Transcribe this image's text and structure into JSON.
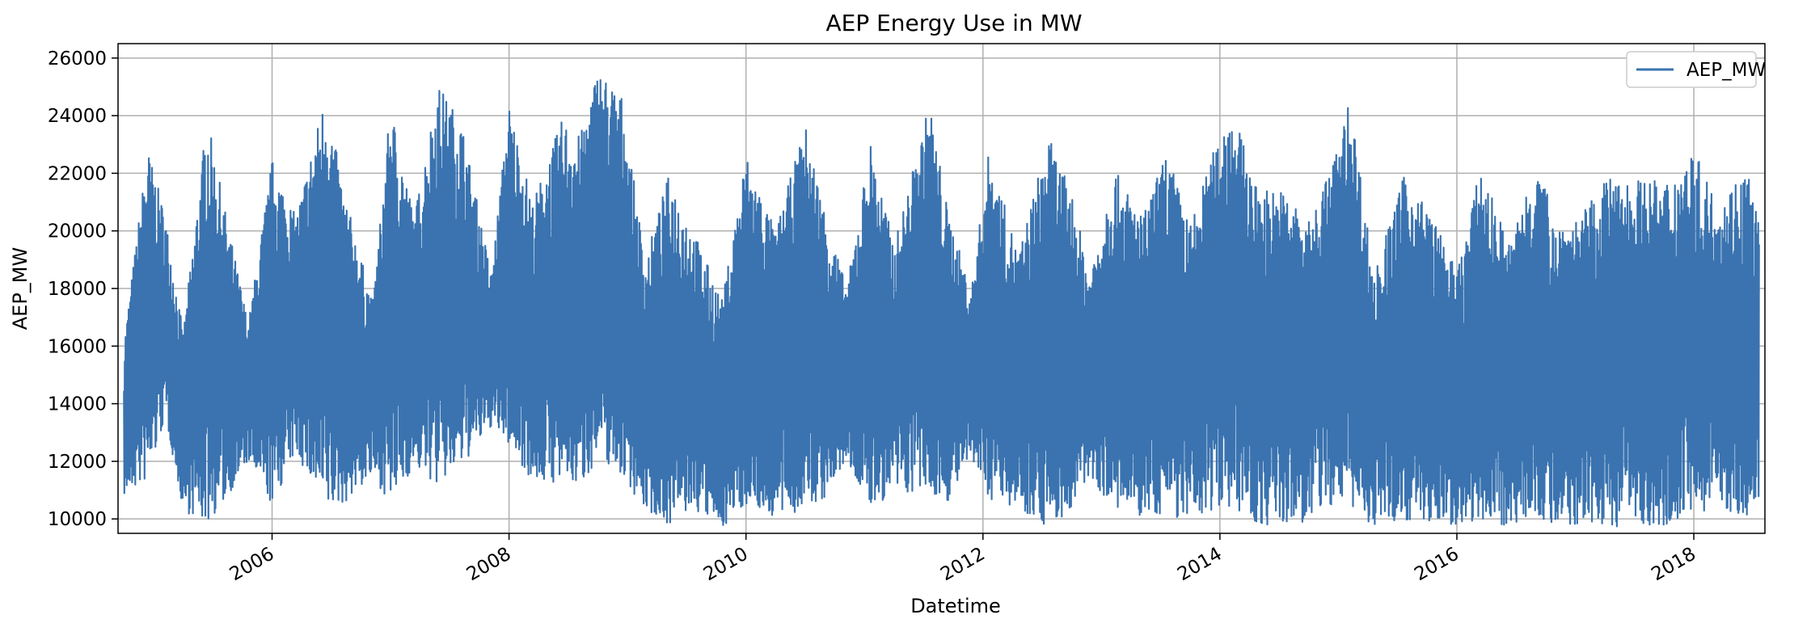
{
  "chart_data": {
    "type": "line",
    "title": "AEP Energy Use in MW",
    "xlabel": "Datetime",
    "ylabel": "AEP_MW",
    "legend": {
      "entries": [
        "AEP_MW"
      ],
      "placement": "top-right"
    },
    "grid": true,
    "x_range": [
      2004.7,
      2018.6
    ],
    "ylim": [
      9500,
      26500
    ],
    "x_ticks": [
      "2006",
      "2008",
      "2010",
      "2012",
      "2014",
      "2016",
      "2018"
    ],
    "y_ticks": [
      "10000",
      "12000",
      "14000",
      "16000",
      "18000",
      "20000",
      "22000",
      "24000",
      "26000"
    ],
    "series": [
      {
        "name": "AEP_MW",
        "color": "#3a73b0",
        "x": [
          2004.75,
          2004.95,
          2005.1,
          2005.25,
          2005.45,
          2005.6,
          2005.8,
          2006.0,
          2006.2,
          2006.45,
          2006.6,
          2006.85,
          2007.0,
          2007.2,
          2007.4,
          2007.6,
          2007.85,
          2008.0,
          2008.2,
          2008.45,
          2008.6,
          2008.75,
          2008.95,
          2009.15,
          2009.35,
          2009.55,
          2009.8,
          2010.0,
          2010.25,
          2010.5,
          2010.65,
          2010.85,
          2011.05,
          2011.25,
          2011.55,
          2011.7,
          2011.9,
          2012.05,
          2012.3,
          2012.55,
          2012.75,
          2012.9,
          2013.1,
          2013.35,
          2013.55,
          2013.75,
          2014.0,
          2014.1,
          2014.3,
          2014.55,
          2014.75,
          2015.0,
          2015.1,
          2015.3,
          2015.55,
          2015.75,
          2016.0,
          2016.2,
          2016.45,
          2016.65,
          2016.85,
          2017.05,
          2017.25,
          2017.55,
          2017.75,
          2018.0,
          2018.2,
          2018.45,
          2018.55
        ],
        "max": [
          16200,
          22900,
          20500,
          16500,
          24000,
          20800,
          16800,
          22500,
          20500,
          24800,
          21500,
          17500,
          24400,
          20500,
          25100,
          23800,
          18500,
          24400,
          21000,
          23900,
          23300,
          25700,
          24700,
          19000,
          22000,
          20100,
          17600,
          22700,
          20000,
          23700,
          21000,
          18000,
          23100,
          19500,
          24500,
          20800,
          17900,
          22800,
          19200,
          23300,
          21300,
          18500,
          22200,
          20500,
          22800,
          20200,
          23500,
          24400,
          21600,
          21400,
          20300,
          23000,
          24700,
          18500,
          21900,
          20900,
          18600,
          22200,
          19500,
          22500,
          20400,
          20500,
          21800,
          21800,
          21700,
          22800,
          21000,
          22300,
          20400
        ],
        "min": [
          10800,
          11300,
          13500,
          10300,
          9800,
          10600,
          12000,
          10400,
          12300,
          10200,
          10500,
          11500,
          10500,
          11800,
          11100,
          11800,
          13200,
          12500,
          11300,
          11200,
          11100,
          12100,
          11500,
          10300,
          9800,
          10300,
          9700,
          10500,
          10000,
          10300,
          10600,
          12000,
          10300,
          10900,
          10800,
          10600,
          12000,
          10700,
          10400,
          9700,
          10200,
          11500,
          10300,
          10000,
          10200,
          9800,
          10500,
          10400,
          9800,
          9700,
          9900,
          10600,
          10400,
          9700,
          10000,
          9800,
          9800,
          10000,
          9700,
          10200,
          9600,
          9800,
          9700,
          9800,
          9800,
          10200,
          10400,
          10000,
          10700
        ]
      }
    ]
  }
}
